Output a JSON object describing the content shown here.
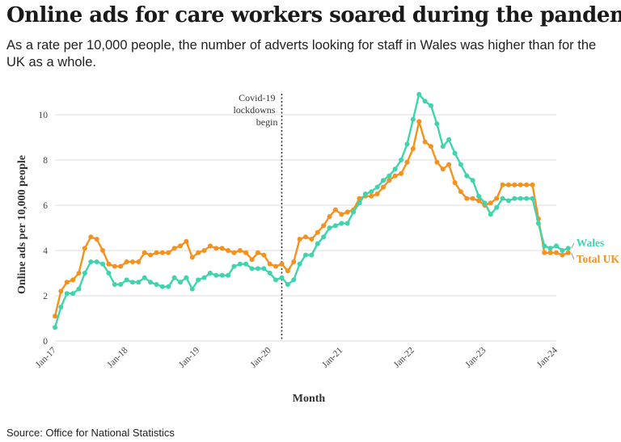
{
  "title": "Online ads for care workers soared during the pandemic",
  "subtitle": "As a rate per 10,000 people, the number of adverts looking for staff in Wales was higher than for the UK as a whole.",
  "source": "Source: Office for National Statistics",
  "colors": {
    "wales": "#3fd4ad",
    "uk": "#f5911e",
    "annotation": "#333333",
    "grid": "#dddddd"
  },
  "chart_data": {
    "type": "line",
    "xlabel": "Month",
    "ylabel": "Online ads per 10,000 people",
    "ylim": [
      0,
      11
    ],
    "yticks": [
      0,
      2,
      4,
      6,
      8,
      10
    ],
    "xticks": [
      "Jan-17",
      "Jan-18",
      "Jan-19",
      "Jan-20",
      "Jan-21",
      "Jan-22",
      "Jan-23",
      "Jan-24"
    ],
    "x_start": "Jan-17",
    "x_end": "Jan-24",
    "grid": true,
    "annotation": {
      "x": "Mar-20",
      "lines": [
        "Covid-19",
        "lockdowns",
        "begin"
      ]
    },
    "series": [
      {
        "name": "Wales",
        "color": "#3fd4ad",
        "values": [
          0.6,
          1.5,
          2.1,
          2.1,
          2.3,
          3.0,
          3.5,
          3.5,
          3.4,
          3.0,
          2.5,
          2.5,
          2.7,
          2.6,
          2.6,
          2.8,
          2.6,
          2.5,
          2.4,
          2.4,
          2.8,
          2.6,
          2.8,
          2.3,
          2.7,
          2.8,
          3.0,
          2.9,
          2.9,
          2.9,
          3.3,
          3.4,
          3.4,
          3.2,
          3.2,
          3.2,
          3.0,
          2.7,
          2.8,
          2.5,
          2.7,
          3.4,
          3.8,
          3.8,
          4.3,
          4.6,
          5.0,
          5.1,
          5.2,
          5.2,
          5.7,
          6.1,
          6.5,
          6.6,
          6.8,
          7.1,
          7.3,
          7.6,
          8.0,
          8.7,
          9.8,
          10.9,
          10.6,
          10.4,
          9.6,
          8.6,
          8.9,
          8.3,
          7.8,
          7.3,
          7.1,
          6.4,
          6.1,
          5.6,
          5.9,
          6.3,
          6.2,
          6.3,
          6.3,
          6.3,
          6.3,
          5.2,
          4.2,
          4.1,
          4.2,
          4.0,
          4.1
        ],
        "end_label": "Wales"
      },
      {
        "name": "Total UK",
        "color": "#f5911e",
        "values": [
          1.1,
          2.2,
          2.6,
          2.7,
          3.0,
          4.1,
          4.6,
          4.5,
          4.0,
          3.4,
          3.3,
          3.3,
          3.5,
          3.5,
          3.5,
          3.9,
          3.8,
          3.9,
          3.9,
          3.9,
          4.1,
          4.2,
          4.4,
          3.7,
          3.9,
          4.0,
          4.2,
          4.1,
          4.1,
          4.0,
          3.9,
          4.0,
          3.9,
          3.6,
          3.9,
          3.8,
          3.4,
          3.3,
          3.4,
          3.1,
          3.5,
          4.5,
          4.6,
          4.5,
          4.8,
          5.1,
          5.5,
          5.8,
          5.6,
          5.7,
          5.8,
          6.3,
          6.4,
          6.4,
          6.5,
          6.8,
          7.1,
          7.3,
          7.4,
          7.9,
          8.5,
          9.7,
          8.8,
          8.6,
          7.9,
          7.6,
          7.8,
          7.0,
          6.6,
          6.3,
          6.3,
          6.2,
          6.0,
          6.1,
          6.3,
          6.9,
          6.9,
          6.9,
          6.9,
          6.9,
          6.9,
          5.4,
          3.9,
          3.9,
          3.9,
          3.8,
          3.9
        ],
        "end_label": "Total UK"
      }
    ]
  }
}
